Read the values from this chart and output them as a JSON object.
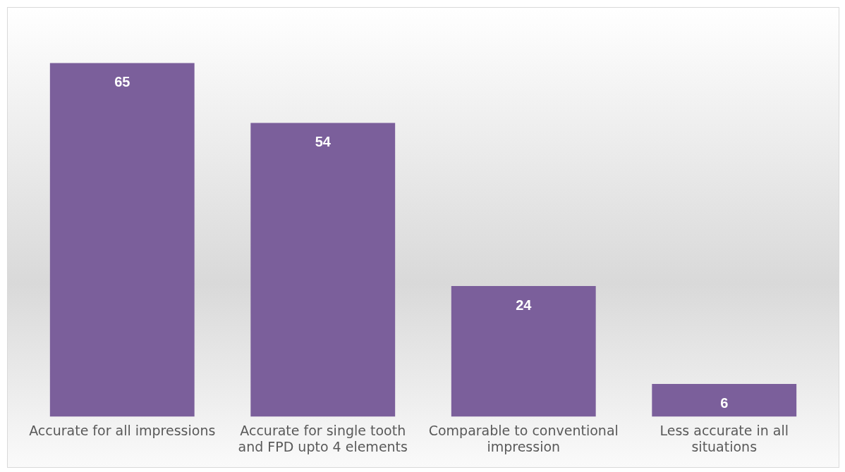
{
  "chart_data": {
    "type": "bar",
    "categories": [
      "Accurate for all impressions",
      "Accurate for single tooth and FPD upto 4 elements",
      "Comparable to conventional impression",
      "Less accurate in all situations"
    ],
    "values": [
      65,
      54,
      24,
      6
    ],
    "color": "#7b5f9b",
    "data_labels": true,
    "grid": false,
    "legend": false
  }
}
